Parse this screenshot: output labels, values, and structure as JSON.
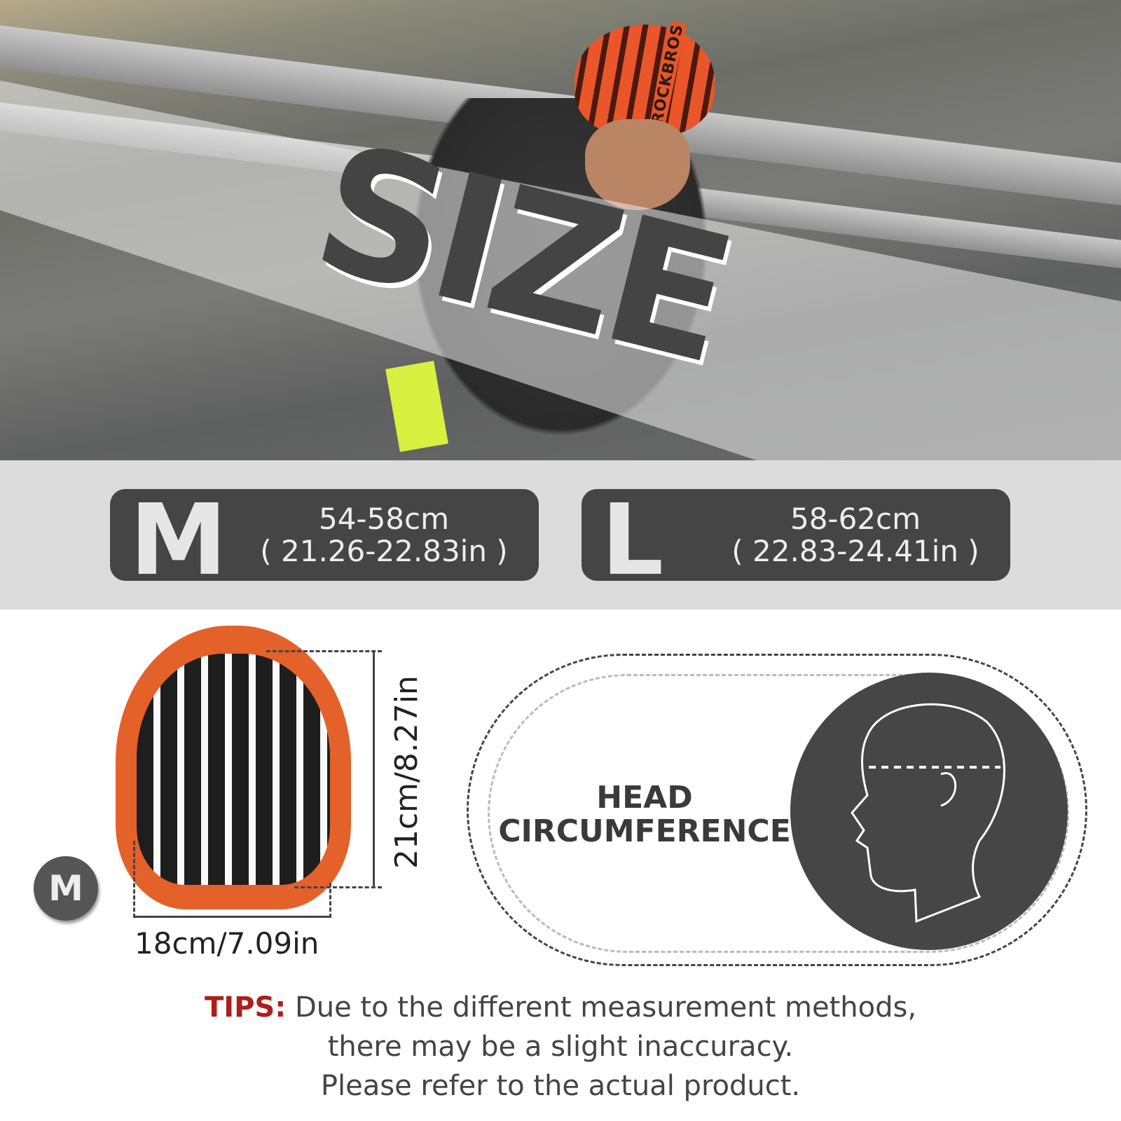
{
  "hero": {
    "title": "SIZE",
    "helmet_brand": "ROCKBROS"
  },
  "sizes": [
    {
      "letter": "M",
      "cm": "54-58cm",
      "inches": "( 21.26-22.83in )"
    },
    {
      "letter": "L",
      "cm": "58-62cm",
      "inches": "( 22.83-24.41in )"
    }
  ],
  "helmet_dims": {
    "height": "21cm/8.27in",
    "width": "18cm/7.09in",
    "size_badge": "M"
  },
  "head": {
    "line1": "HEAD",
    "line2": "CIRCUMFERENCE",
    "icon": "head-profile-measure-icon"
  },
  "tips": {
    "label": "TIPS:",
    "line1": " Due to the different measurement methods,",
    "line2": "there may be a slight inaccuracy.",
    "line3": "Please refer to the actual product."
  },
  "colors": {
    "dark": "#454545",
    "strip": "#dcdcdc",
    "tips": "#b01c1c",
    "helmet": "#e4612a"
  }
}
